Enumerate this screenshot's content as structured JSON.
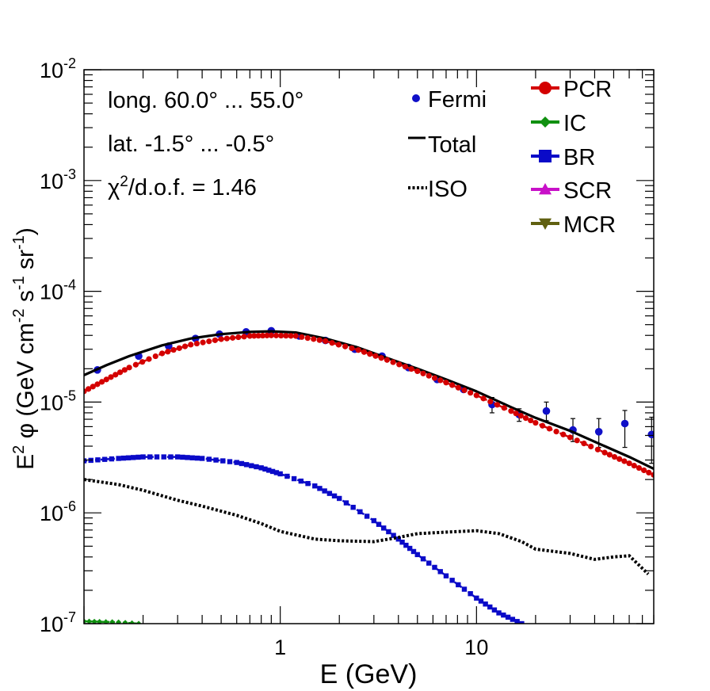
{
  "chart_data": {
    "type": "scatter",
    "title": "",
    "xlabel": "E (GeV)",
    "ylabel_parts": {
      "main": "E",
      "sup2": "2",
      "phi": " φ (GeV cm",
      "supm2": "-2",
      "s": " s",
      "supm1a": "-1",
      "sr": " sr",
      "supm1b": "-1",
      "close": ")"
    },
    "xscale": "log",
    "yscale": "log",
    "xlim": [
      0.1,
      80
    ],
    "ylim": [
      1e-07,
      0.01
    ],
    "x_tick_labels": [
      {
        "value": 1,
        "label": "1"
      },
      {
        "value": 10,
        "label": "10"
      }
    ],
    "y_tick_labels": [
      {
        "value": 1e-07,
        "base": "10",
        "exp": "-7"
      },
      {
        "value": 1e-06,
        "base": "10",
        "exp": "-6"
      },
      {
        "value": 1e-05,
        "base": "10",
        "exp": "-5"
      },
      {
        "value": 0.0001,
        "base": "10",
        "exp": "-4"
      },
      {
        "value": 0.001,
        "base": "10",
        "exp": "-3"
      },
      {
        "value": 0.01,
        "base": "10",
        "exp": "-2"
      }
    ],
    "annotations": {
      "longitude": "long. 60.0° ... 55.0°",
      "latitude": "lat. -1.5° ... -0.5°",
      "chi_prefix": "χ",
      "chi_sup": "2",
      "chi_suffix": "/d.o.f. = 1.46"
    },
    "legend_left": [
      {
        "key": "fermi",
        "label": "Fermi",
        "color": "#1010c8",
        "marker": "dot"
      },
      {
        "key": "total",
        "label": "Total",
        "color": "#000000",
        "marker": "line"
      },
      {
        "key": "iso",
        "label": "ISO",
        "color": "#000000",
        "marker": "dotted"
      }
    ],
    "legend_right": [
      {
        "key": "pcr",
        "label": "PCR",
        "color": "#d40000",
        "marker": "circle"
      },
      {
        "key": "ic",
        "label": "IC",
        "color": "#109010",
        "marker": "diamond"
      },
      {
        "key": "br",
        "label": "BR",
        "color": "#0a0ac8",
        "marker": "square"
      },
      {
        "key": "scr",
        "label": "SCR",
        "color": "#c810c8",
        "marker": "triangle-up"
      },
      {
        "key": "mcr",
        "label": "MCR",
        "color": "#606010",
        "marker": "triangle-down"
      }
    ],
    "series": [
      {
        "name": "Fermi",
        "style": "points",
        "color": "#1010c8",
        "x": [
          0.117,
          0.19,
          0.27,
          0.37,
          0.49,
          0.67,
          0.9,
          1.25,
          1.7,
          2.4,
          3.3,
          4.5,
          6.3,
          8.6,
          12.0,
          16.5,
          22.7,
          31.0,
          42.0,
          57.0,
          78.0
        ],
        "y": [
          1.95e-05,
          2.6e-05,
          3.2e-05,
          3.75e-05,
          4.1e-05,
          4.3e-05,
          4.4e-05,
          3.95e-05,
          3.6e-05,
          3e-05,
          2.6e-05,
          2.05e-05,
          1.6e-05,
          1.3e-05,
          9.5e-06,
          7.7e-06,
          8.3e-06,
          5.6e-06,
          5.4e-06,
          6.4e-06,
          5.1e-06
        ],
        "yerr_low": [
          0,
          0,
          0,
          0,
          0,
          0,
          0,
          0,
          0,
          0,
          0,
          0,
          0,
          0,
          1.5e-06,
          1e-06,
          1.5e-06,
          1.2e-06,
          1.5e-06,
          2.5e-06,
          2.3e-06
        ],
        "yerr_high": [
          0,
          0,
          0,
          0,
          0,
          0,
          0,
          0,
          0,
          0,
          0,
          0,
          0,
          0,
          1.5e-06,
          1e-06,
          1.7e-06,
          1.5e-06,
          1.7e-06,
          2e-06,
          2.2e-06
        ]
      },
      {
        "name": "Total",
        "style": "solid",
        "color": "#000000",
        "x": [
          0.1,
          0.13,
          0.17,
          0.25,
          0.35,
          0.5,
          0.7,
          0.9,
          1.2,
          1.7,
          2.5,
          3.5,
          5.0,
          7.0,
          10.0,
          15.0,
          20.0,
          30.0,
          45.0,
          60.0,
          80.0
        ],
        "y": [
          1.75e-05,
          2.15e-05,
          2.6e-05,
          3.25e-05,
          3.75e-05,
          4.1e-05,
          4.3e-05,
          4.35e-05,
          4.25e-05,
          3.75e-05,
          3.1e-05,
          2.5e-05,
          2e-05,
          1.6e-05,
          1.25e-05,
          9e-06,
          7.2e-06,
          5.5e-06,
          4e-06,
          3.2e-06,
          2.5e-06
        ]
      },
      {
        "name": "PCR",
        "style": "markers",
        "color": "#d40000",
        "x": [
          0.1,
          0.13,
          0.17,
          0.25,
          0.35,
          0.5,
          0.7,
          0.9,
          1.2,
          1.7,
          2.5,
          3.5,
          5.0,
          7.0,
          10.0,
          15.0,
          20.0,
          30.0,
          45.0,
          60.0,
          80.0
        ],
        "y": [
          1.25e-05,
          1.6e-05,
          2.05e-05,
          2.75e-05,
          3.3e-05,
          3.7e-05,
          3.95e-05,
          4e-05,
          3.95e-05,
          3.55e-05,
          2.95e-05,
          2.4e-05,
          1.9e-05,
          1.5e-05,
          1.15e-05,
          8.3e-06,
          6.5e-06,
          4.8e-06,
          3.5e-06,
          2.8e-06,
          2.2e-06
        ]
      },
      {
        "name": "BR",
        "style": "markers",
        "color": "#0a0ac8",
        "x": [
          0.1,
          0.15,
          0.2,
          0.3,
          0.4,
          0.6,
          0.8,
          1.0,
          1.5,
          2.0,
          3.0,
          4.0,
          5.0,
          7.0,
          10.0,
          13.0,
          17.0
        ],
        "y": [
          2.95e-06,
          3.1e-06,
          3.2e-06,
          3.2e-06,
          3.1e-06,
          2.85e-06,
          2.55e-06,
          2.25e-06,
          1.75e-06,
          1.35e-06,
          8.5e-07,
          5.8e-07,
          4.2e-07,
          2.7e-07,
          1.7e-07,
          1.25e-07,
          1e-07
        ]
      },
      {
        "name": "ISO",
        "style": "dotted",
        "color": "#000000",
        "x": [
          0.1,
          0.15,
          0.2,
          0.3,
          0.4,
          0.6,
          0.8,
          1.0,
          1.5,
          2.0,
          3.0,
          4.0,
          5.0,
          7.0,
          10.0,
          13.0,
          17.0,
          20.0,
          30.0,
          40.0,
          50.0,
          60.0,
          75.0
        ],
        "y": [
          2e-06,
          1.8e-06,
          1.6e-06,
          1.3e-06,
          1.15e-06,
          9.5e-07,
          8e-07,
          6.8e-07,
          5.8e-07,
          5.6e-07,
          5.5e-07,
          6e-07,
          6.5e-07,
          6.7e-07,
          6.9e-07,
          6.5e-07,
          5.5e-07,
          4.7e-07,
          4.3e-07,
          3.8e-07,
          4e-07,
          4.1e-07,
          2.8e-07
        ]
      },
      {
        "name": "IC",
        "style": "markers",
        "color": "#109010",
        "x": [
          0.1,
          0.12,
          0.15,
          0.19
        ],
        "y": [
          1.05e-07,
          1.04e-07,
          1.03e-07,
          1e-07
        ]
      }
    ],
    "legend_placement": "top-right"
  }
}
